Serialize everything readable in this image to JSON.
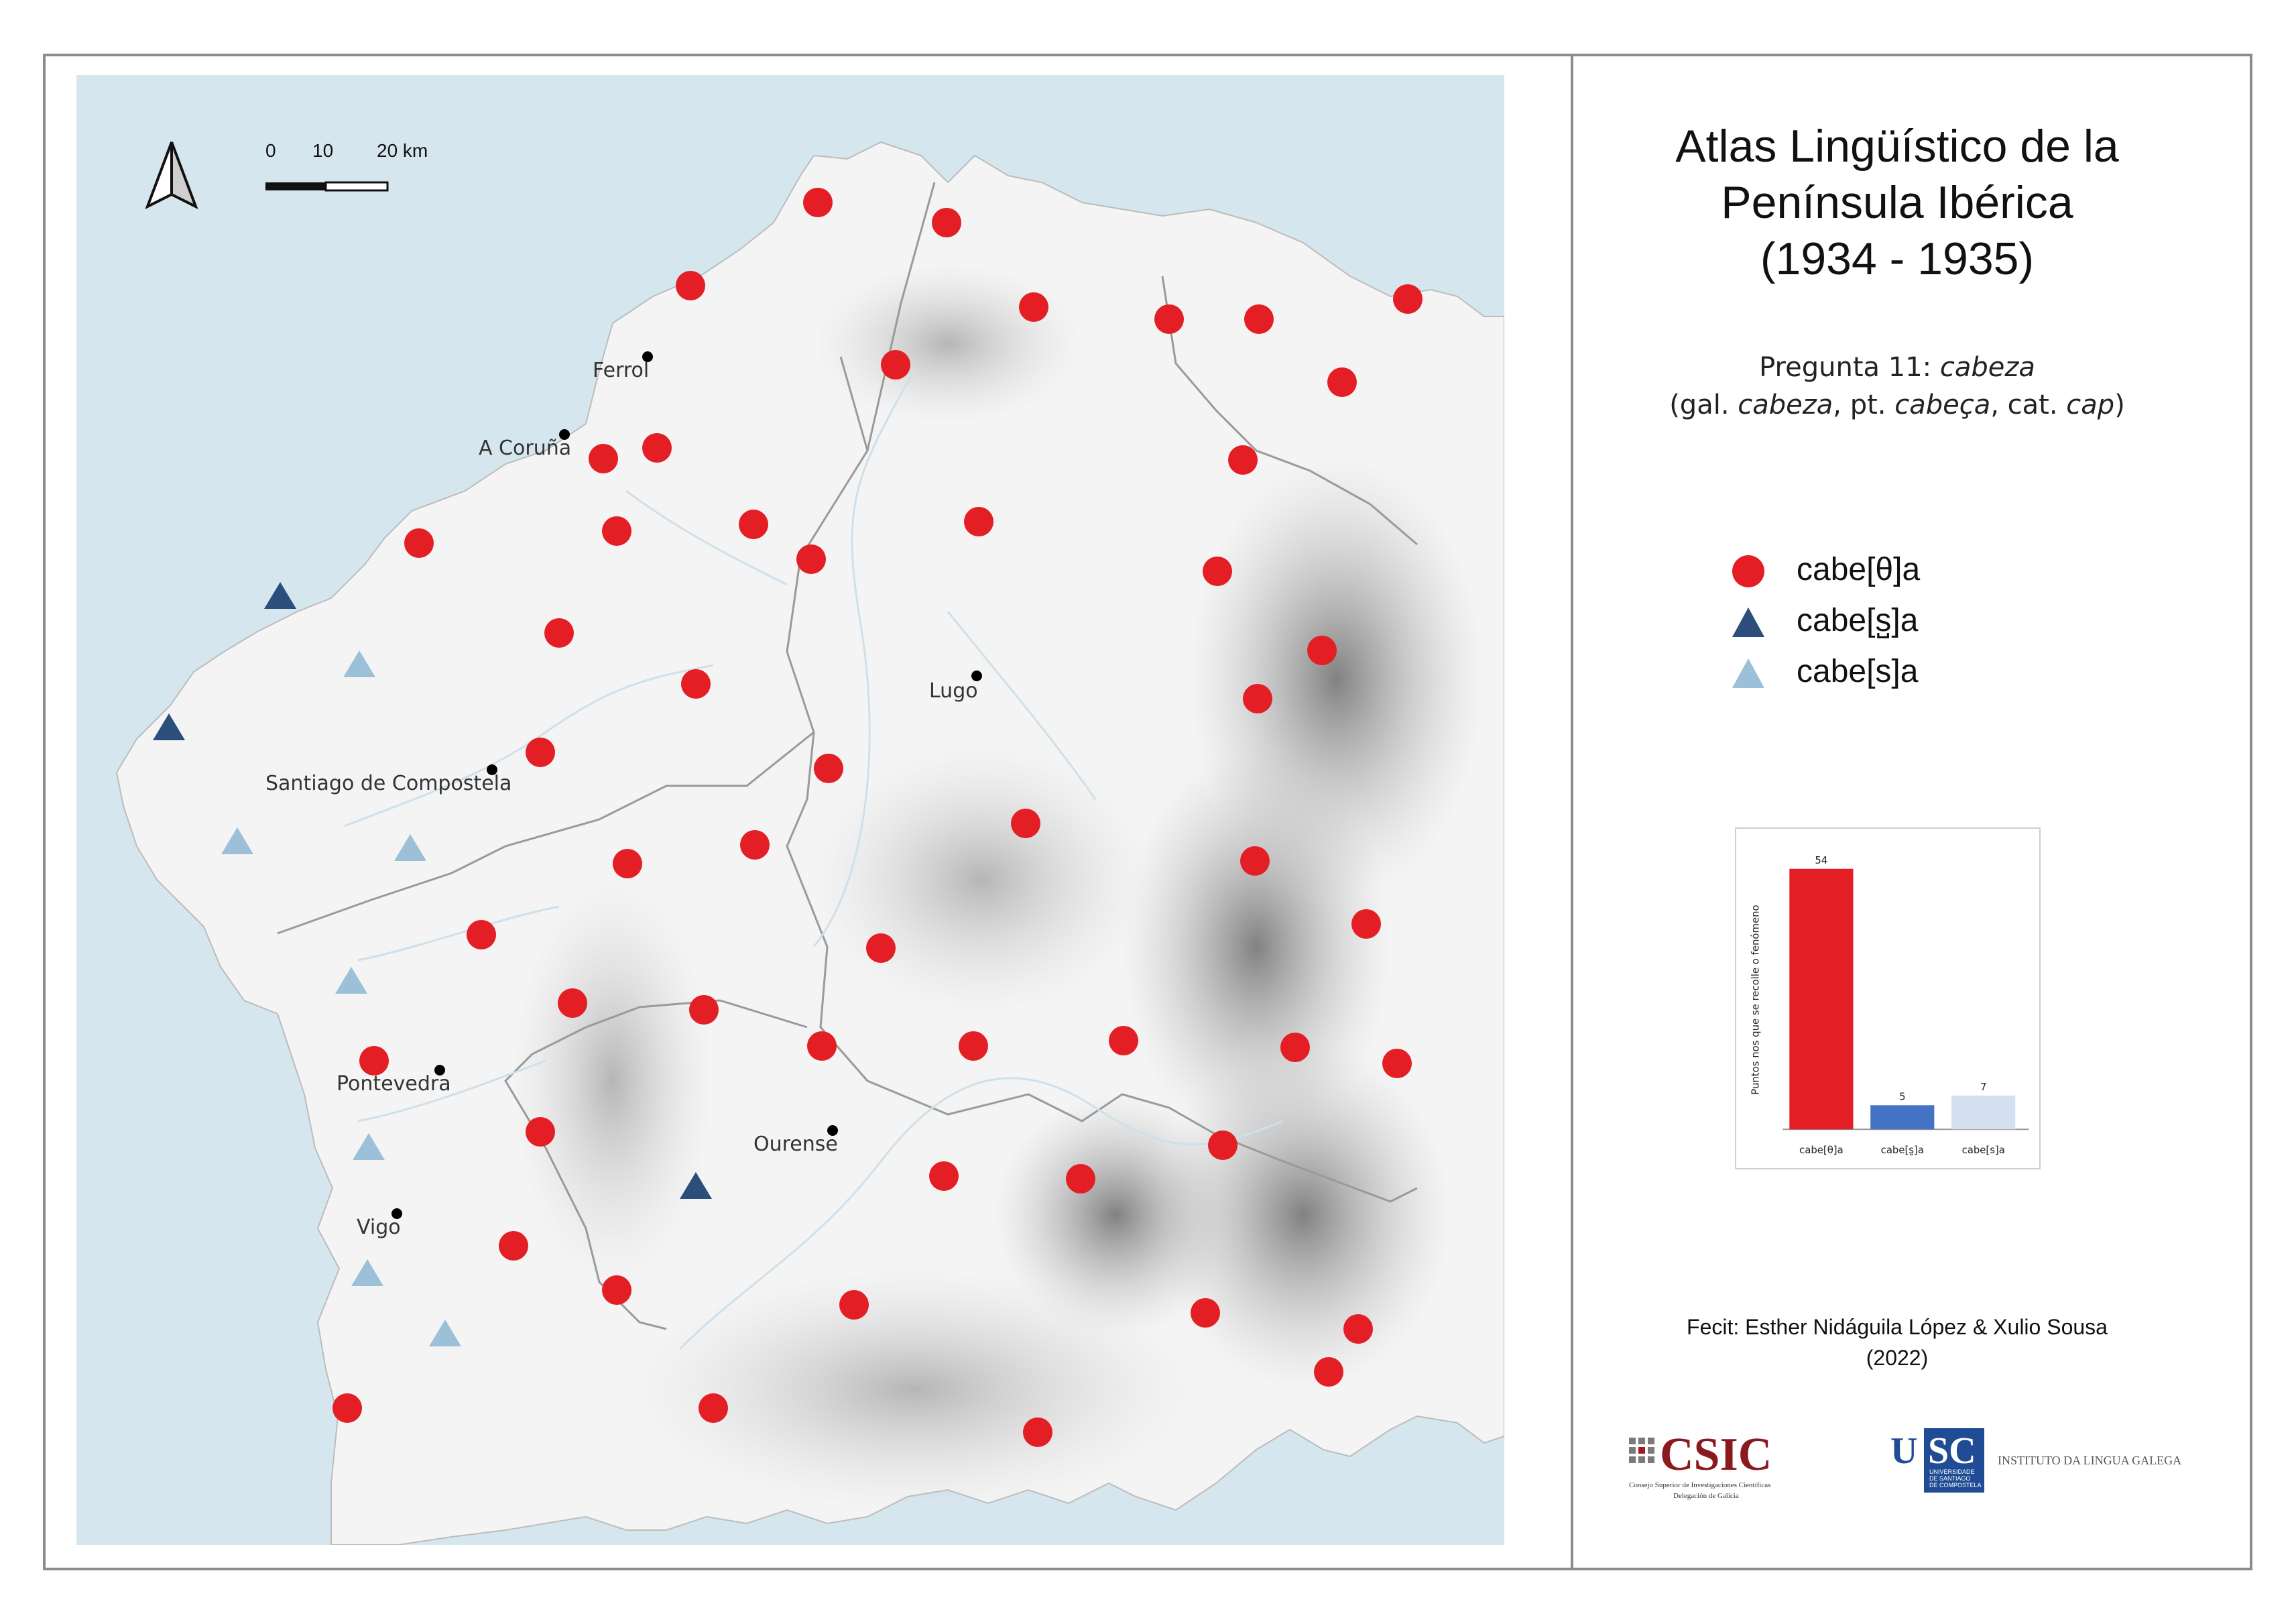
{
  "title": [
    "Atlas Lingüístico de la",
    "Península Ibérica",
    "(1934 - 1935)"
  ],
  "question": {
    "prefix": "Pregunta 11: ",
    "word": "cabeza",
    "gloss_open": "(gal. ",
    "gal": "cabeza",
    "pt_sep": ", pt. ",
    "pt": "cabeça",
    "cat_sep": ", cat. ",
    "cat": "cap",
    "gloss_close": ")"
  },
  "legend": [
    {
      "label": "cabe[θ]a",
      "shape": "circle",
      "color": "#e31e24"
    },
    {
      "label": "cabe[s̺]a",
      "shape": "triangle",
      "color": "#2b4f7a"
    },
    {
      "label": "cabe[s]a",
      "shape": "triangle",
      "color": "#9cc0d8"
    }
  ],
  "scale_bar": {
    "ticks": [
      "0",
      "10",
      "20 km"
    ]
  },
  "north_arrow": "north-arrow-icon",
  "cities": [
    {
      "name": "Ferrol"
    },
    {
      "name": "A Coruña"
    },
    {
      "name": "Lugo"
    },
    {
      "name": "Santiago de Compostela"
    },
    {
      "name": "Pontevedra"
    },
    {
      "name": "Ourense"
    },
    {
      "name": "Vigo"
    }
  ],
  "chart_data": {
    "type": "bar",
    "categories": [
      "cabe[θ]a",
      "cabe[s̺]a",
      "cabe[s]a"
    ],
    "values": [
      54,
      5,
      7
    ],
    "colors": [
      "#e31e24",
      "#4472c4",
      "#d5e0f0"
    ],
    "ylabel": "Puntos nos que se recolle o fenómeno",
    "xlabel": "",
    "title": "",
    "ylim": [
      0,
      54
    ],
    "grid": false
  },
  "credits": [
    "Fecit: Esther Nidáguila López & Xulio Sousa",
    "(2022)"
  ],
  "logos": {
    "csic": {
      "name": "CSIC",
      "line1": "Consejo Superior de Investigaciones Científicas",
      "line2": "Delegación de Galicia"
    },
    "usc": {
      "name": "USC",
      "sub1": "UNIVERSIDADE",
      "sub2": "DE SANTIAGO",
      "sub3": "DE COMPOSTELA",
      "institute": "INSTITUTO DA LINGUA GALEGA"
    }
  },
  "colors": {
    "sea": "#d6e6ef",
    "land": "#f3f3f3",
    "red": "#e31e24",
    "dark_blue": "#2b4f7a",
    "light_blue": "#9cc0d8",
    "frame": "#8c8c8c"
  }
}
